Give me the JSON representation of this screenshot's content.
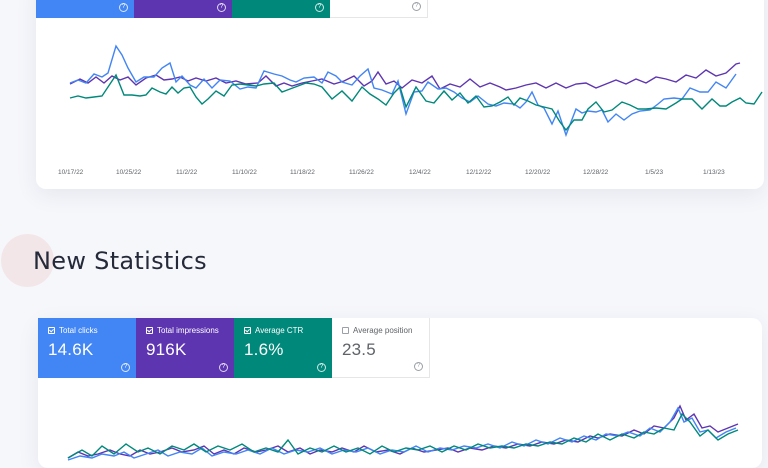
{
  "top_card": {
    "tiles": [
      {
        "label": "",
        "value": "",
        "checked": true,
        "color": "#4285f4"
      },
      {
        "label": "",
        "value": "",
        "checked": true,
        "color": "#5e35b1"
      },
      {
        "label": "",
        "value": "",
        "checked": true,
        "color": "#00897b"
      },
      {
        "label": "",
        "value": "",
        "checked": false,
        "color": "#ffffff"
      }
    ],
    "x_ticks": [
      "10/17/22",
      "10/25/22",
      "11/2/22",
      "11/10/22",
      "11/18/22",
      "11/26/22",
      "12/4/22",
      "12/12/22",
      "12/20/22",
      "12/28/22",
      "1/5/23",
      "1/13/23"
    ]
  },
  "section_title": "New Statistics",
  "bottom_card": {
    "tiles": [
      {
        "label": "Total clicks",
        "value": "14.6K",
        "checked": true,
        "color": "#4285f4"
      },
      {
        "label": "Total impressions",
        "value": "916K",
        "checked": true,
        "color": "#5e35b1"
      },
      {
        "label": "Average CTR",
        "value": "1.6%",
        "checked": true,
        "color": "#00897b"
      },
      {
        "label": "Average position",
        "value": "23.5",
        "checked": false,
        "color": "#ffffff"
      }
    ]
  },
  "colors": {
    "clicks": "#4285f4",
    "impressions": "#5e35b1",
    "ctr": "#00897b",
    "accent_circle": "#f3e6e8"
  },
  "icons": {
    "help": "question-circle-icon",
    "checkbox": "checkbox-icon"
  }
}
